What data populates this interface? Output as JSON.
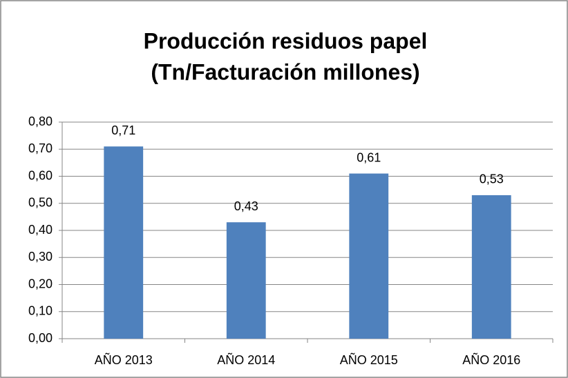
{
  "chart_data": {
    "type": "bar",
    "title": [
      "Producción residuos papel",
      "(Tn/Facturación millones)"
    ],
    "categories": [
      "AÑO 2013",
      "AÑO 2014",
      "AÑO 2015",
      "AÑO 2016"
    ],
    "values": [
      0.71,
      0.43,
      0.61,
      0.53
    ],
    "value_labels": [
      "0,71",
      "0,43",
      "0,61",
      "0,53"
    ],
    "color": "#4f81bd",
    "ylim": [
      0,
      0.8
    ],
    "yticks": [
      {
        "value": 0,
        "label": "0,00"
      },
      {
        "value": 0.1,
        "label": "0,10"
      },
      {
        "value": 0.2,
        "label": "0,20"
      },
      {
        "value": 0.3,
        "label": "0,30"
      },
      {
        "value": 0.4,
        "label": "0,40"
      },
      {
        "value": 0.5,
        "label": "0,50"
      },
      {
        "value": 0.6,
        "label": "0,60"
      },
      {
        "value": 0.7,
        "label": "0,70"
      },
      {
        "value": 0.8,
        "label": "0,80"
      }
    ],
    "grid": true
  }
}
